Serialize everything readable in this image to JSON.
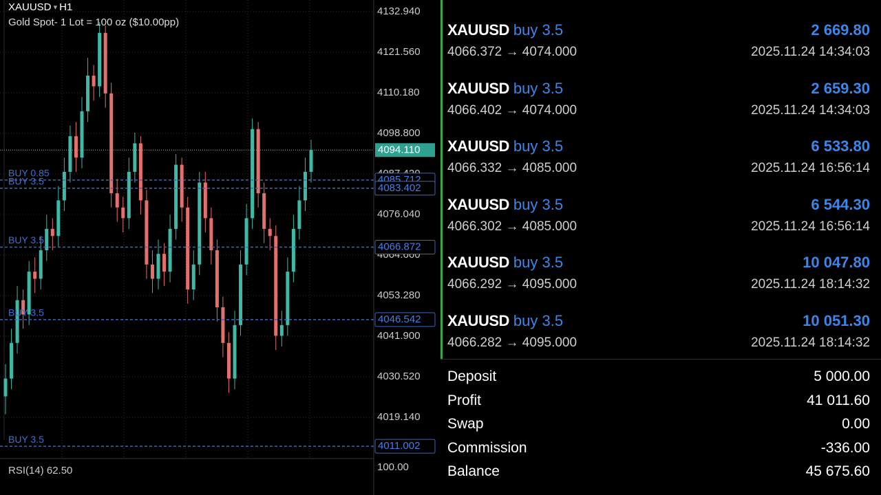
{
  "chart": {
    "type": "candlestick",
    "symbol": "XAUUSD",
    "timeframe": "H1",
    "description": "Gold Spot- 1 Lot = 100 oz ($10.00pp)",
    "ylim": [
      4007.94,
      4136.22
    ],
    "yticks": [
      {
        "value": 4132.94,
        "label": "4132.940"
      },
      {
        "value": 4121.56,
        "label": "4121.560"
      },
      {
        "value": 4110.18,
        "label": "4110.180"
      },
      {
        "value": 4098.8,
        "label": "4098.800"
      },
      {
        "value": 4087.42,
        "label": "4087.420"
      },
      {
        "value": 4076.04,
        "label": "4076.040"
      },
      {
        "value": 4064.66,
        "label": "4064.660"
      },
      {
        "value": 4053.28,
        "label": "4053.280"
      },
      {
        "value": 4041.9,
        "label": "4041.900"
      },
      {
        "value": 4030.52,
        "label": "4030.520"
      },
      {
        "value": 4019.14,
        "label": "4019.140"
      }
    ],
    "up_color": "#3fb8a6",
    "down_color": "#e2706c",
    "current_price": {
      "value": 4094.11,
      "label": "4094.110"
    },
    "order_lines": [
      {
        "label": "BUY 0.85",
        "price": {
          "value": 4085.712,
          "label": "4085.712"
        }
      },
      {
        "label": "BUY 3.5",
        "price": {
          "value": 4083.402,
          "label": "4083.402"
        }
      },
      {
        "label": "BUY 3.5",
        "price": {
          "value": 4066.872,
          "label": "4066.872"
        }
      },
      {
        "label": "BUY 3.5",
        "price": {
          "value": 4046.542,
          "label": "4046.542"
        }
      },
      {
        "label": "BUY 3.5",
        "price": {
          "value": 4011.002,
          "label": "4011.002"
        }
      }
    ],
    "candles": [
      [
        4025,
        4034,
        4020,
        4030
      ],
      [
        4030,
        4044,
        4027,
        4040
      ],
      [
        4040,
        4056,
        4037,
        4052
      ],
      [
        4052,
        4055,
        4044,
        4048
      ],
      [
        4048,
        4063,
        4045,
        4060
      ],
      [
        4060,
        4064,
        4054,
        4058
      ],
      [
        4058,
        4070,
        4055,
        4066
      ],
      [
        4066,
        4076,
        4063,
        4072
      ],
      [
        4072,
        4075,
        4066,
        4070
      ],
      [
        4070,
        4084,
        4067,
        4080
      ],
      [
        4080,
        4092,
        4077,
        4088
      ],
      [
        4088,
        4101,
        4085,
        4098
      ],
      [
        4098,
        4102,
        4088,
        4092
      ],
      [
        4092,
        4109,
        4089,
        4105
      ],
      [
        4105,
        4120,
        4102,
        4115
      ],
      [
        4115,
        4118,
        4108,
        4112
      ],
      [
        4112,
        4130,
        4109,
        4127
      ],
      [
        4127,
        4129,
        4106,
        4110
      ],
      [
        4110,
        4113,
        4078,
        4082
      ],
      [
        4082,
        4086,
        4074,
        4078
      ],
      [
        4078,
        4081,
        4071,
        4075
      ],
      [
        4075,
        4092,
        4072,
        4088
      ],
      [
        4088,
        4099,
        4085,
        4096
      ],
      [
        4096,
        4098,
        4076,
        4080
      ],
      [
        4080,
        4083,
        4058,
        4062
      ],
      [
        4062,
        4066,
        4054,
        4058
      ],
      [
        4058,
        4069,
        4055,
        4065
      ],
      [
        4065,
        4068,
        4056,
        4060
      ],
      [
        4060,
        4076,
        4057,
        4072
      ],
      [
        4072,
        4093,
        4069,
        4090
      ],
      [
        4090,
        4092,
        4074,
        4078
      ],
      [
        4078,
        4081,
        4051,
        4055
      ],
      [
        4055,
        4066,
        4052,
        4062
      ],
      [
        4062,
        4088,
        4059,
        4085
      ],
      [
        4085,
        4088,
        4071,
        4075
      ],
      [
        4075,
        4078,
        4062,
        4066
      ],
      [
        4066,
        4069,
        4046,
        4050
      ],
      [
        4050,
        4053,
        4036,
        4040
      ],
      [
        4040,
        4043,
        4026,
        4030
      ],
      [
        4030,
        4049,
        4027,
        4045
      ],
      [
        4045,
        4066,
        4042,
        4062
      ],
      [
        4062,
        4079,
        4059,
        4075
      ],
      [
        4075,
        4103,
        4072,
        4100
      ],
      [
        4100,
        4102,
        4078,
        4082
      ],
      [
        4082,
        4085,
        4068,
        4072
      ],
      [
        4072,
        4075,
        4066,
        4070
      ],
      [
        4070,
        4073,
        4038,
        4042
      ],
      [
        4042,
        4049,
        4039,
        4045
      ],
      [
        4045,
        4064,
        4042,
        4060
      ],
      [
        4060,
        4076,
        4057,
        4072
      ],
      [
        4072,
        4084,
        4069,
        4080
      ],
      [
        4080,
        4092,
        4077,
        4088
      ],
      [
        4088,
        4097,
        4085,
        4094.11
      ]
    ],
    "rsi": {
      "label": "RSI(14) 62.50",
      "level": "100.00"
    }
  },
  "trades": [
    {
      "symbol": "XAUUSD",
      "side": "buy 3.5",
      "profit": "2 669.80",
      "prices": "4066.372 → 4074.000",
      "time": "2025.11.24 14:34:03"
    },
    {
      "symbol": "XAUUSD",
      "side": "buy 3.5",
      "profit": "2 659.30",
      "prices": "4066.402 → 4074.000",
      "time": "2025.11.24 14:34:03"
    },
    {
      "symbol": "XAUUSD",
      "side": "buy 3.5",
      "profit": "6 533.80",
      "prices": "4066.332 → 4085.000",
      "time": "2025.11.24 16:56:14"
    },
    {
      "symbol": "XAUUSD",
      "side": "buy 3.5",
      "profit": "6 544.30",
      "prices": "4066.302 → 4085.000",
      "time": "2025.11.24 16:56:14"
    },
    {
      "symbol": "XAUUSD",
      "side": "buy 3.5",
      "profit": "10 047.80",
      "prices": "4066.292 → 4095.000",
      "time": "2025.11.24 18:14:32"
    },
    {
      "symbol": "XAUUSD",
      "side": "buy 3.5",
      "profit": "10 051.30",
      "prices": "4066.282 → 4095.000",
      "time": "2025.11.24 18:14:32"
    }
  ],
  "summary": [
    {
      "label": "Deposit",
      "value": "5 000.00"
    },
    {
      "label": "Profit",
      "value": "41 011.60"
    },
    {
      "label": "Swap",
      "value": "0.00"
    },
    {
      "label": "Commission",
      "value": "-336.00"
    },
    {
      "label": "Balance",
      "value": "45 675.60"
    }
  ]
}
